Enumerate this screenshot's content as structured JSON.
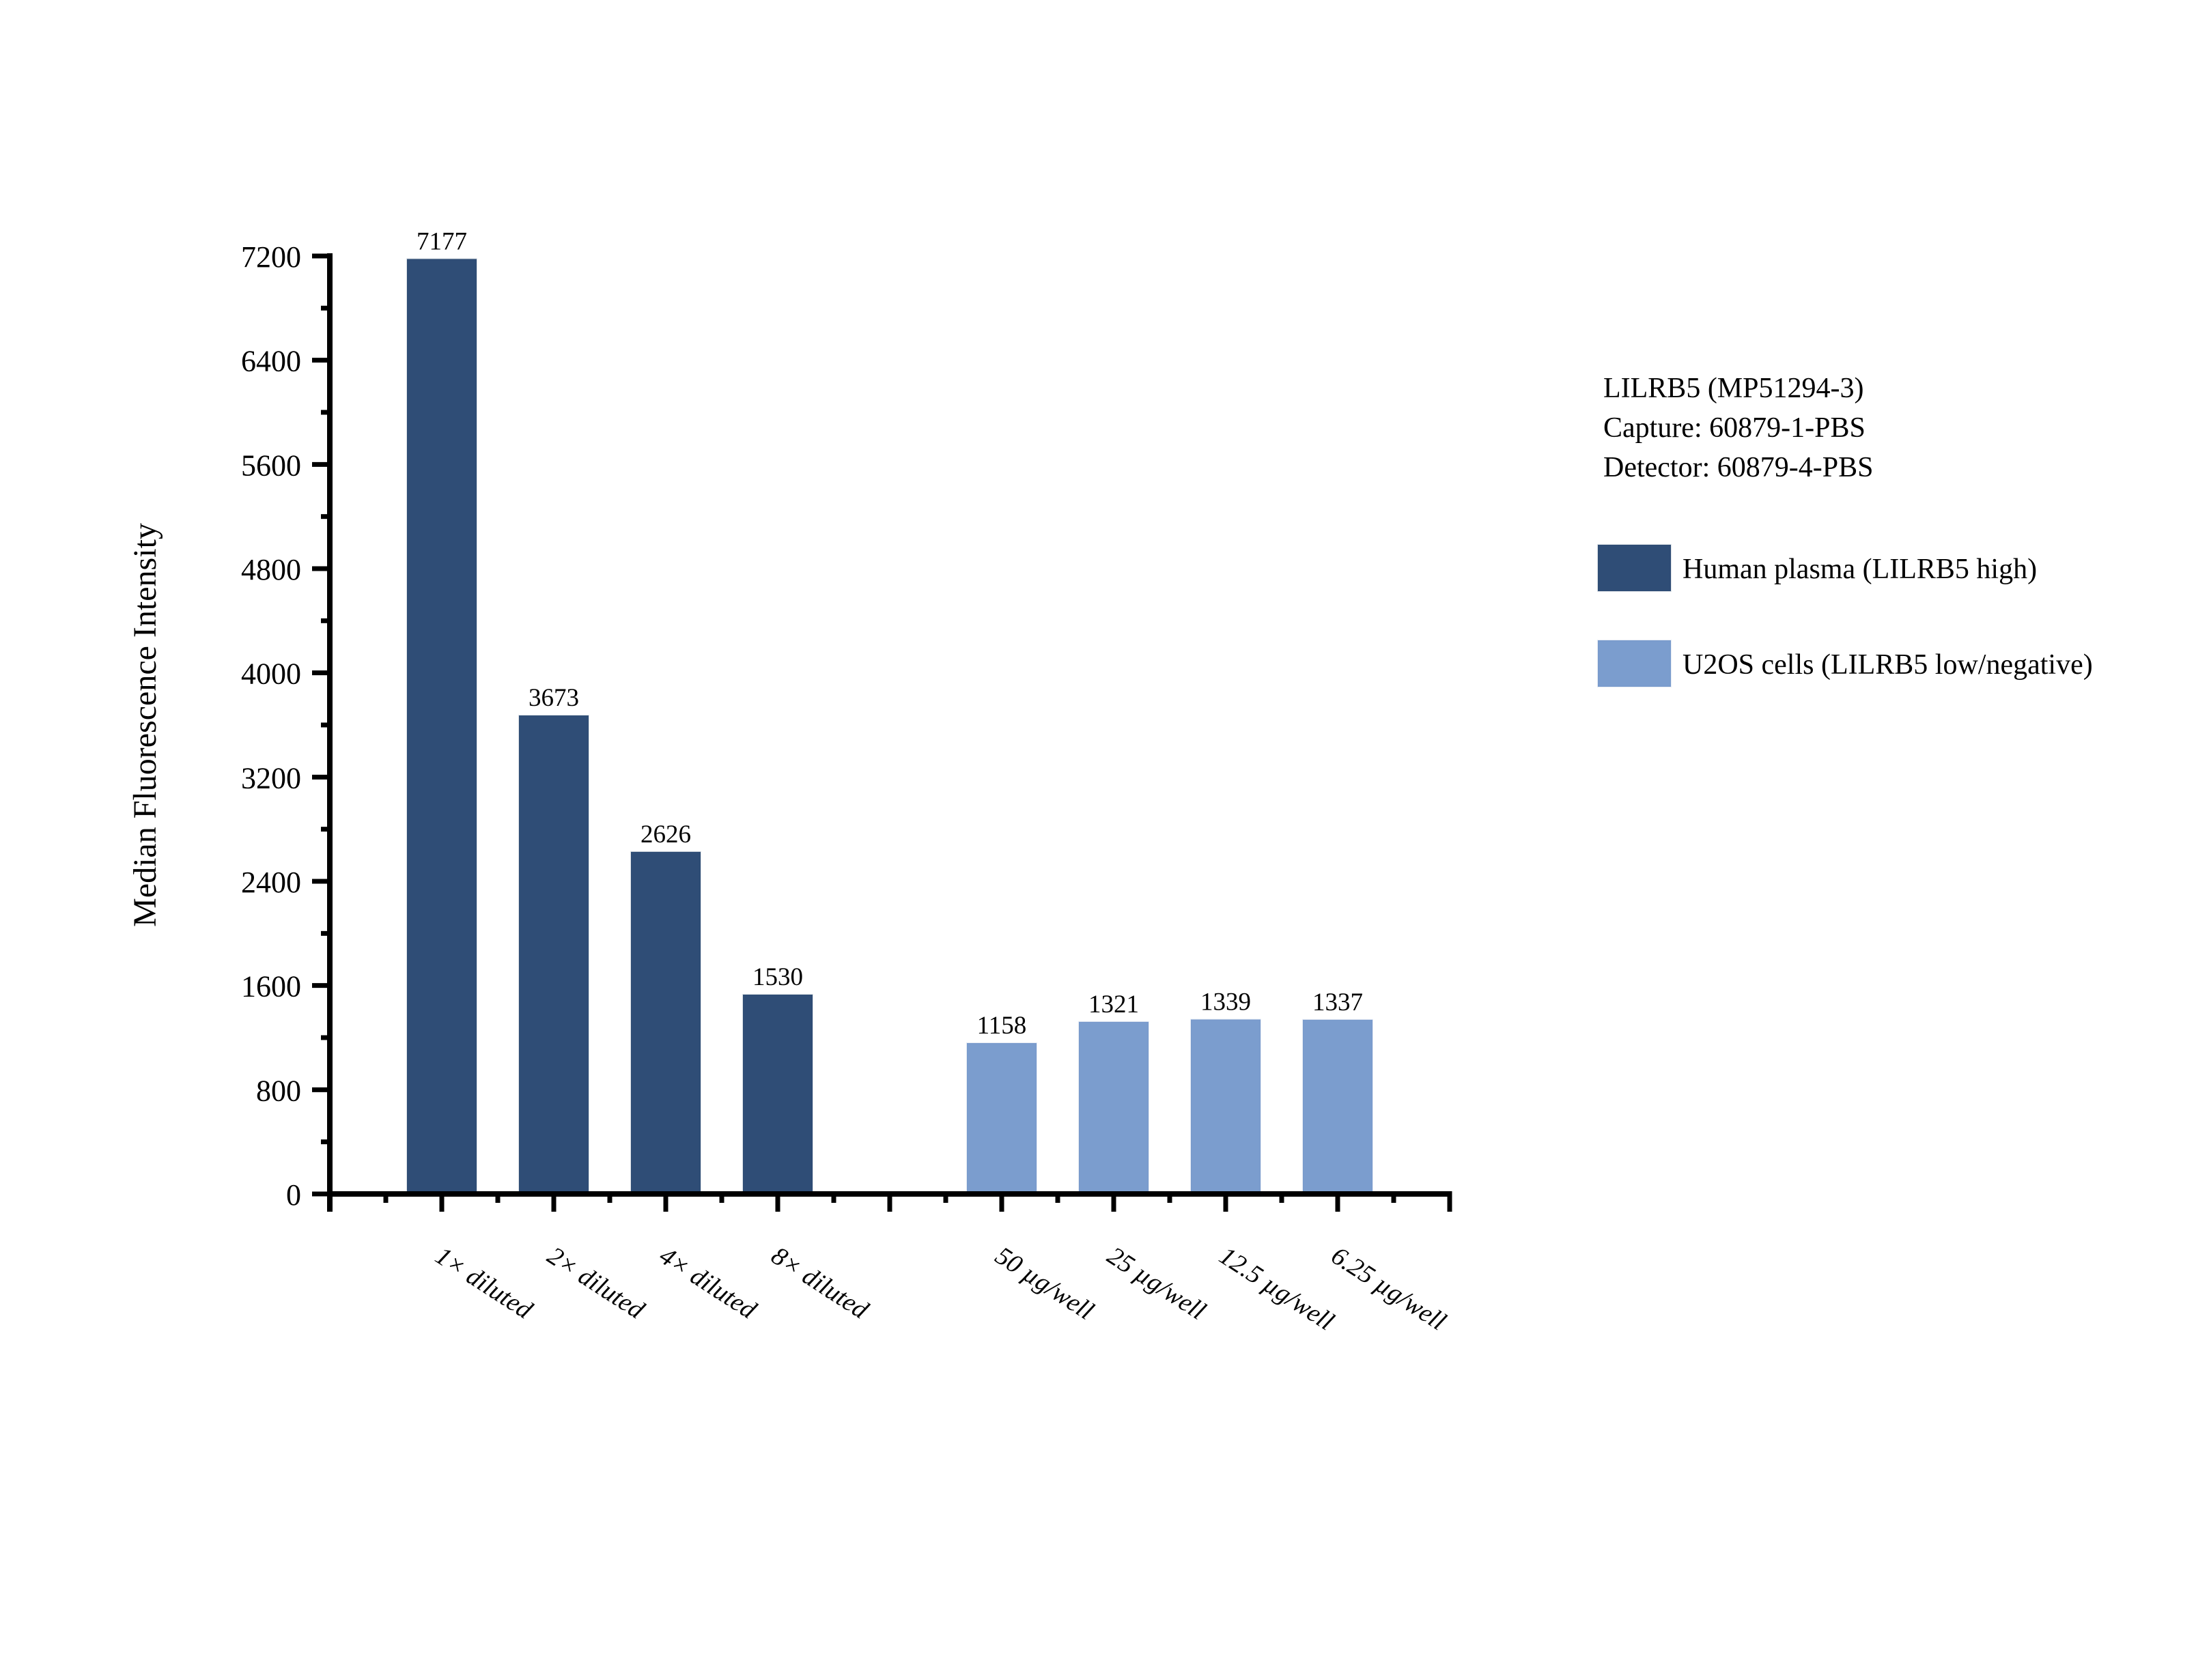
{
  "page": {
    "background": "#ffffff"
  },
  "chart_data": {
    "type": "bar",
    "title": "",
    "xlabel": "",
    "ylabel": "Median Fluorescence Intensity",
    "ylim": [
      0,
      7200
    ],
    "ytick_step": 800,
    "yminor_step": 400,
    "grid": false,
    "legend_position": "right",
    "bar_value_labels": true,
    "x_tick_label_rotation_deg": 33,
    "categories": [
      "1× diluted",
      "2× diluted",
      "4× diluted",
      "8× diluted",
      "",
      "50 µg/well",
      "25 µg/well",
      "12.5 µg/well",
      "6.25 µg/well"
    ],
    "y_tick_labels": [
      "0",
      "800",
      "1600",
      "2400",
      "3200",
      "4000",
      "4800",
      "5600",
      "6400",
      "7200"
    ],
    "series": [
      {
        "name": "Human plasma (LILRB5 high)",
        "color": "#2F4D76",
        "edge_color": "#24406326",
        "values": [
          7177,
          3673,
          2626,
          1530,
          null,
          null,
          null,
          null,
          null
        ]
      },
      {
        "name": "U2OS cells (LILRB5 low/negative)",
        "color": "#7B9DCE",
        "edge_color": "#6488BC26",
        "values": [
          null,
          null,
          null,
          null,
          null,
          1158,
          1321,
          1339,
          1337
        ]
      }
    ]
  },
  "annotation": {
    "lines": [
      "LILRB5 (MP51294-3)",
      "Capture: 60879-1-PBS",
      "Detector: 60879-4-PBS"
    ]
  },
  "axis": {
    "color": "#000000"
  }
}
